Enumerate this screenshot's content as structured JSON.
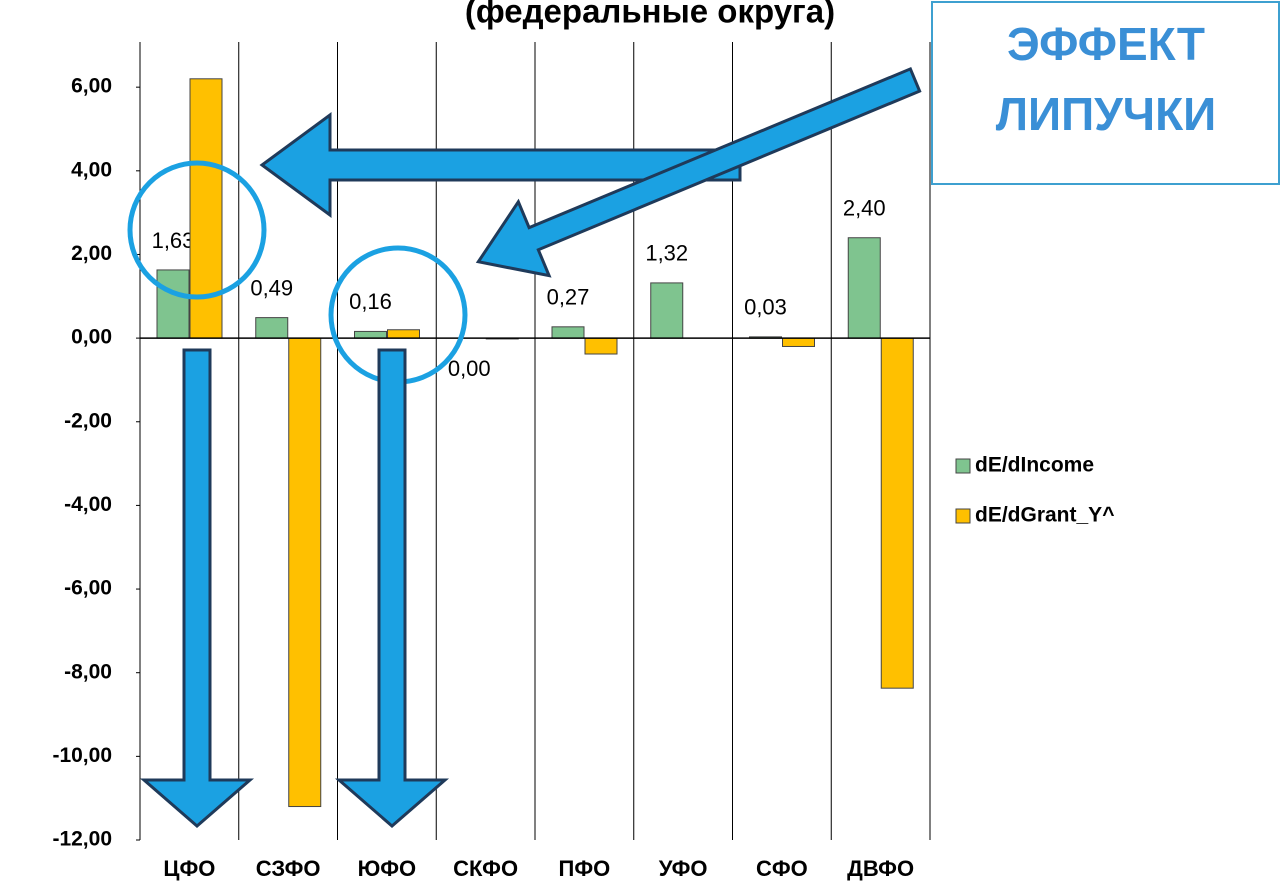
{
  "chart_data": {
    "type": "bar",
    "title": "(федеральные округа)",
    "annotations": [
      "ЭФФЕКТ",
      "ЛИПУЧКИ"
    ],
    "categories": [
      "ЦФО",
      "СЗФО",
      "ЮФО",
      "СКФО",
      "ПФО",
      "УФО",
      "СФО",
      "ДВФО"
    ],
    "series": [
      {
        "name": "dE/dIncome",
        "color": "#7fc48f",
        "values": [
          1.63,
          0.49,
          0.16,
          0.0,
          0.27,
          1.32,
          0.03,
          2.4
        ],
        "value_labels": [
          "1,63",
          "0,49",
          "0,16",
          "0,00",
          "0,27",
          "1,32",
          "0,03",
          "2,40"
        ]
      },
      {
        "name": "dE/dGrant_Y^",
        "color": "#ffc000",
        "values": [
          6.2,
          -11.2,
          0.2,
          -0.02,
          -0.38,
          0,
          -0.2,
          -8.37
        ]
      }
    ],
    "ylim": [
      -12,
      7.08
    ],
    "yticks": [
      {
        "value": 6,
        "label": "6,00"
      },
      {
        "value": 4,
        "label": "4,00"
      },
      {
        "value": 2,
        "label": "2,00"
      },
      {
        "value": 0,
        "label": "0,00"
      },
      {
        "value": -2,
        "label": "-2,00"
      },
      {
        "value": -4,
        "label": "-4,00"
      },
      {
        "value": -6,
        "label": "-6,00"
      },
      {
        "value": -8,
        "label": "-8,00"
      },
      {
        "value": -10,
        "label": "-10,00"
      },
      {
        "value": -12,
        "label": "-12,00"
      }
    ],
    "legend": "right"
  }
}
